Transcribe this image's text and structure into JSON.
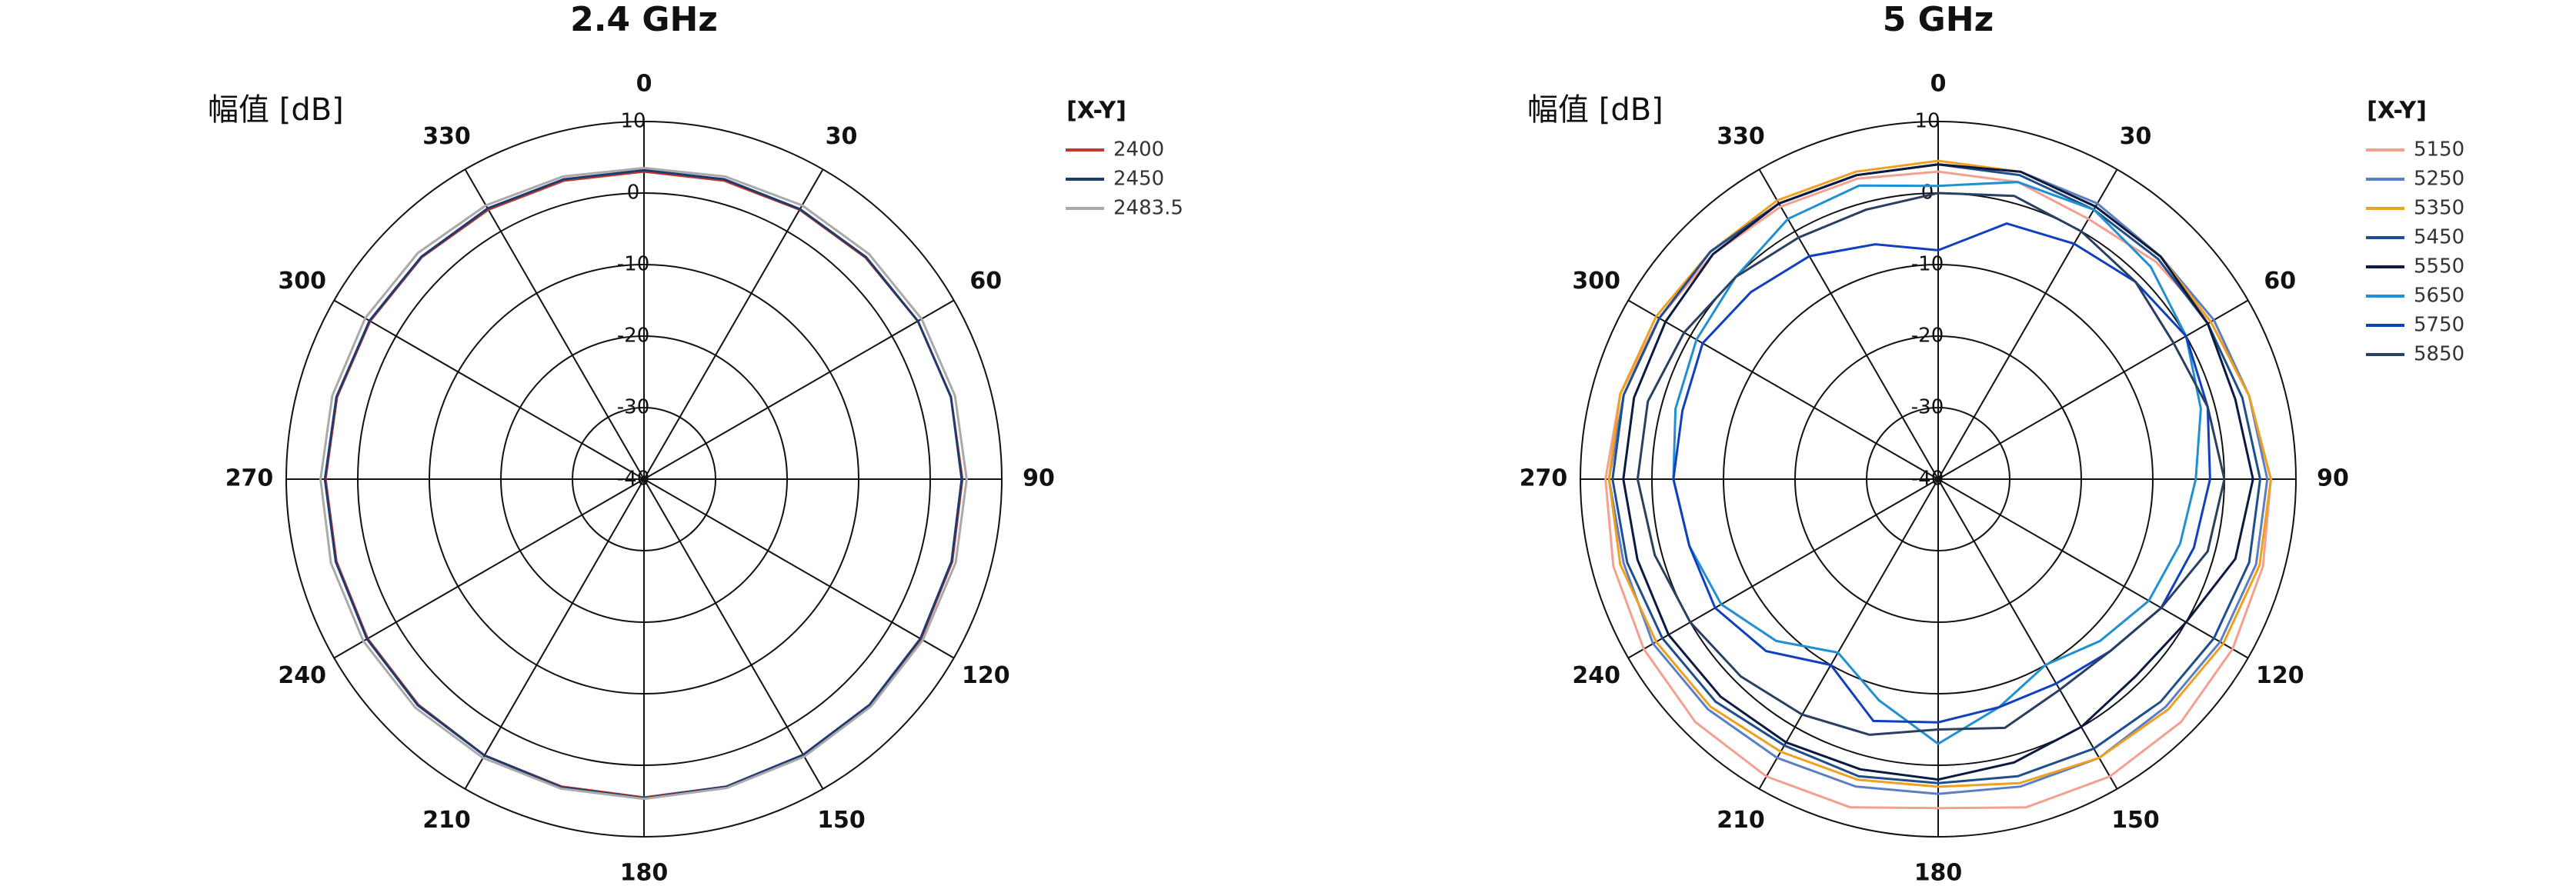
{
  "chart_data": [
    {
      "type": "polar",
      "title": "2.4 GHz",
      "r_label": "幅值 [dB]",
      "legend_title": "[X-Y]",
      "theta": [
        0,
        15,
        30,
        45,
        60,
        75,
        90,
        105,
        120,
        135,
        150,
        165,
        180,
        195,
        210,
        225,
        240,
        255,
        270,
        285,
        300,
        315,
        330,
        345
      ],
      "rlim": [
        -40,
        10
      ],
      "rticks": [
        -40,
        -30,
        -20,
        -10,
        0,
        10
      ],
      "thetaticks": [
        0,
        30,
        60,
        90,
        120,
        150,
        180,
        210,
        240,
        270,
        300,
        330
      ],
      "series": [
        {
          "name": "2400",
          "color": "#c0392b",
          "values": [
            3,
            3.2,
            3.5,
            3.8,
            4.2,
            4.4,
            4.5,
            4.6,
            4.7,
            4.7,
            4.6,
            4.5,
            4.5,
            4.5,
            4.6,
            4.6,
            4.6,
            4.5,
            4.5,
            4.4,
            4.2,
            3.9,
            3.5,
            3.2
          ]
        },
        {
          "name": "2450",
          "color": "#1f3a6e",
          "values": [
            3.2,
            3.4,
            3.6,
            3.9,
            4.2,
            4.4,
            4.4,
            4.5,
            4.6,
            4.6,
            4.5,
            4.5,
            4.6,
            4.6,
            4.6,
            4.7,
            4.7,
            4.6,
            4.6,
            4.5,
            4.3,
            4.0,
            3.7,
            3.4
          ]
        },
        {
          "name": "2483.5",
          "color": "#aaaaaa",
          "values": [
            3.5,
            3.8,
            4.2,
            4.5,
            4.8,
            5,
            5.1,
            5.1,
            5,
            4.9,
            4.8,
            4.7,
            4.7,
            4.8,
            5,
            5.2,
            5.3,
            5.3,
            5.2,
            5.1,
            5,
            4.7,
            4.2,
            3.8
          ]
        }
      ]
    },
    {
      "type": "polar",
      "title": "5 GHz",
      "r_label": "幅值 [dB]",
      "legend_title": "[X-Y]",
      "theta": [
        0,
        15,
        30,
        45,
        60,
        75,
        90,
        105,
        120,
        135,
        150,
        165,
        180,
        195,
        210,
        225,
        240,
        255,
        270,
        285,
        300,
        315,
        330,
        345
      ],
      "rlim": [
        -40,
        10
      ],
      "rticks": [
        -40,
        -30,
        -20,
        -10,
        0,
        10
      ],
      "thetaticks": [
        0,
        30,
        60,
        90,
        120,
        150,
        180,
        210,
        240,
        270,
        300,
        330
      ],
      "series": [
        {
          "name": "5150",
          "color": "#f4a090",
          "values": [
            3,
            3,
            2,
            3,
            4,
            5,
            6.5,
            7,
            7.5,
            8,
            8,
            7.5,
            6,
            7.5,
            8,
            8,
            7.5,
            7,
            6.5,
            6,
            5,
            4.5,
            4,
            3.5
          ]
        },
        {
          "name": "5250",
          "color": "#5b7fc4",
          "values": [
            4,
            4.5,
            4.5,
            4,
            4.5,
            5,
            6,
            6,
            5.5,
            5,
            5,
            4.5,
            4,
            4.5,
            5,
            5.5,
            6,
            5.5,
            6,
            5.5,
            5,
            5,
            4.5,
            4
          ]
        },
        {
          "name": "5350",
          "color": "#f0a020",
          "values": [
            4.5,
            4.5,
            4,
            4,
            4,
            5,
            6.5,
            6.5,
            6,
            5.5,
            5,
            4,
            3,
            3.5,
            4,
            5,
            5.5,
            6,
            6,
            6,
            5.5,
            5,
            5,
            4.5
          ]
        },
        {
          "name": "5450",
          "color": "#1f4e8c",
          "values": [
            4,
            4,
            3.5,
            3.5,
            3.5,
            4,
            5,
            5,
            4.5,
            4,
            3.5,
            3,
            2.5,
            3,
            3,
            4,
            4.5,
            5,
            5.5,
            5.5,
            5,
            5,
            4.5,
            4
          ]
        },
        {
          "name": "5550",
          "color": "#0a1a40",
          "values": [
            4,
            4.5,
            4,
            4,
            3.5,
            3,
            4,
            3,
            0,
            -1,
            0,
            1,
            2,
            2,
            2.5,
            3,
            3.5,
            3.5,
            4,
            4,
            4,
            4.5,
            4.5,
            4
          ]
        },
        {
          "name": "5650",
          "color": "#2090d0",
          "values": [
            1,
            3,
            3.5,
            2,
            0,
            -2,
            -4,
            -5,
            -6,
            -8,
            -10,
            -7,
            -3,
            -8,
            -12,
            -8,
            -5,
            -4,
            -3,
            -2,
            -1,
            0,
            2,
            2.5
          ]
        },
        {
          "name": "5750",
          "color": "#1040c0",
          "values": [
            -8,
            -3,
            -2,
            -1,
            0,
            -1,
            -2,
            -3,
            -4,
            -6,
            -7,
            -7,
            -6,
            -5,
            -10,
            -6,
            -4,
            -4,
            -3,
            -3,
            -2,
            -3,
            -4,
            -6
          ]
        },
        {
          "name": "5850",
          "color": "#2a4060",
          "values": [
            0,
            1,
            0,
            -1,
            -2,
            -1,
            0,
            -1,
            -4,
            -6,
            -6,
            -4,
            -5,
            -3,
            -2,
            -1,
            0,
            1,
            2,
            2,
            1,
            0,
            -1,
            -1
          ]
        }
      ]
    }
  ]
}
